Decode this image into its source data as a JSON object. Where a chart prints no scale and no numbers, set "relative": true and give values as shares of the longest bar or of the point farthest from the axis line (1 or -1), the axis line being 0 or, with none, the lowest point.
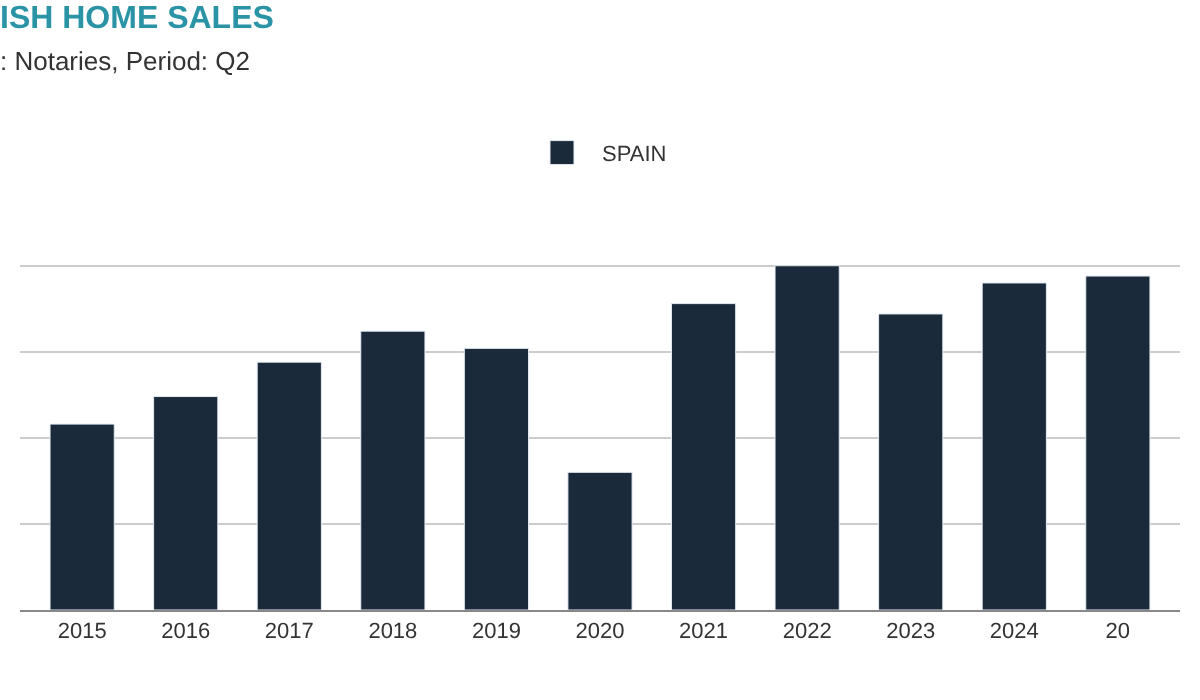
{
  "chart_data": {
    "type": "bar",
    "title": "ISH HOME SALES",
    "subtitle": ": Notaries, Period: Q2",
    "categories": [
      "2015",
      "2016",
      "2017",
      "2018",
      "2019",
      "2020",
      "2021",
      "2022",
      "2023",
      "2024",
      "20"
    ],
    "series": [
      {
        "name": "SPAIN",
        "color": "#1b2a3a",
        "values": [
          0.54,
          0.62,
          0.72,
          0.81,
          0.76,
          0.4,
          0.89,
          1,
          0.86,
          0.95,
          0.97
        ]
      }
    ],
    "relative": true,
    "grid": "y",
    "legend": "top"
  }
}
